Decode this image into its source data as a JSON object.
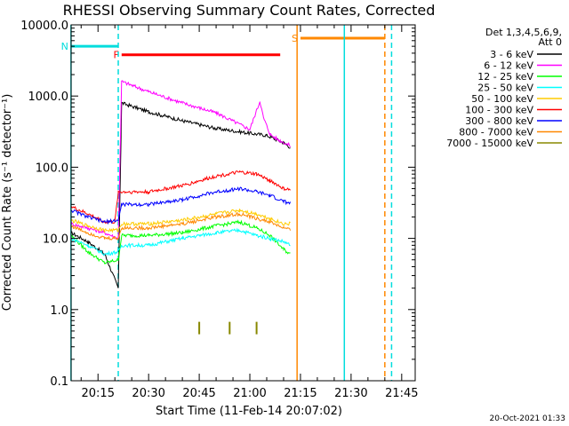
{
  "chart_data": {
    "type": "line",
    "title": "RHESSI Observing Summary Count Rates, Corrected",
    "xlabel": "Start Time (11-Feb-14 20:07:02)",
    "ylabel": "Corrected Count Rate (s⁻¹ detector⁻¹)",
    "y_scale": "log",
    "ylim": [
      0.1,
      10000
    ],
    "xlim": [
      "20:07:02",
      "21:49:00"
    ],
    "x_ticks": [
      "20:15",
      "20:30",
      "20:45",
      "21:00",
      "21:15",
      "21:30",
      "21:45"
    ],
    "y_ticks": [
      "0.1",
      "1.0",
      "10.0",
      "100.0",
      "1000.0",
      "10000.0"
    ],
    "grid": false,
    "legend_position": "top-right",
    "legend_header": [
      "Det 1,3,4,5,6,9,",
      "Att 0"
    ],
    "series": [
      {
        "name": "3 - 6 keV",
        "color": "#000000",
        "x": [
          "20:07",
          "20:12",
          "20:17",
          "20:21",
          "20:22",
          "20:30",
          "20:40",
          "20:50",
          "21:00",
          "21:05",
          "21:10",
          "21:12"
        ],
        "values": [
          12,
          9,
          6,
          2,
          800,
          600,
          450,
          350,
          300,
          280,
          220,
          190
        ]
      },
      {
        "name": "6 - 12 keV",
        "color": "#ff00ff",
        "x": [
          "20:07",
          "20:12",
          "20:17",
          "20:21",
          "20:22",
          "20:30",
          "20:40",
          "20:50",
          "21:00",
          "21:03",
          "21:04",
          "21:06",
          "21:08",
          "21:12"
        ],
        "values": [
          16,
          14,
          12,
          10,
          1600,
          1150,
          800,
          580,
          340,
          850,
          500,
          290,
          250,
          200
        ]
      },
      {
        "name": "12 - 25 keV",
        "color": "#00ff00",
        "x": [
          "20:07",
          "20:12",
          "20:17",
          "20:21",
          "20:22",
          "20:30",
          "20:40",
          "20:50",
          "20:57",
          "21:02",
          "21:06",
          "21:10",
          "21:12"
        ],
        "values": [
          11,
          6.5,
          4.5,
          5,
          11,
          11,
          12,
          15,
          17,
          14,
          11,
          7,
          6
        ]
      },
      {
        "name": "25 - 50 keV",
        "color": "#00ffff",
        "x": [
          "20:07",
          "20:12",
          "20:17",
          "20:21",
          "20:22",
          "20:30",
          "20:40",
          "20:50",
          "20:57",
          "21:02",
          "21:06",
          "21:10",
          "21:12"
        ],
        "values": [
          10,
          8,
          6,
          6.5,
          8,
          8,
          10,
          12,
          13,
          11,
          10,
          9,
          8
        ]
      },
      {
        "name": "50 - 100 keV",
        "color": "#ffcc00",
        "x": [
          "20:07",
          "20:12",
          "20:17",
          "20:21",
          "20:22",
          "20:30",
          "20:40",
          "20:50",
          "20:57",
          "21:02",
          "21:06",
          "21:10",
          "21:12"
        ],
        "values": [
          18,
          15,
          13,
          13,
          16,
          16,
          18,
          22,
          25,
          22,
          19,
          16,
          16
        ]
      },
      {
        "name": "100 - 300 keV",
        "color": "#ff0000",
        "x": [
          "20:07",
          "20:12",
          "20:17",
          "20:20",
          "20:21",
          "20:30",
          "20:40",
          "20:50",
          "20:57",
          "21:02",
          "21:06",
          "21:10",
          "21:12"
        ],
        "values": [
          28,
          22,
          17,
          17,
          45,
          45,
          55,
          75,
          85,
          80,
          65,
          50,
          48
        ]
      },
      {
        "name": "300 - 800 keV",
        "color": "#0000ff",
        "x": [
          "20:07",
          "20:12",
          "20:17",
          "20:21",
          "20:22",
          "20:30",
          "20:40",
          "20:50",
          "20:57",
          "21:02",
          "21:06",
          "21:10",
          "21:12"
        ],
        "values": [
          25,
          20,
          17,
          18,
          30,
          30,
          35,
          45,
          50,
          45,
          40,
          33,
          31
        ]
      },
      {
        "name": "800 - 7000 keV",
        "color": "#ff8800",
        "x": [
          "20:07",
          "20:12",
          "20:17",
          "20:21",
          "20:22",
          "20:30",
          "20:40",
          "20:50",
          "20:57",
          "21:02",
          "21:06",
          "21:10",
          "21:12"
        ],
        "values": [
          15,
          12,
          10,
          10,
          14,
          14,
          16,
          20,
          22,
          19,
          17,
          14,
          13
        ]
      },
      {
        "name": "7000 - 15000 keV",
        "color": "#888800",
        "x": [
          "20:45",
          "20:54",
          "21:02"
        ],
        "values": [
          0.55,
          0.55,
          0.55
        ]
      }
    ],
    "annotations": [
      {
        "text": "N",
        "color": "#00dddd",
        "time_range": [
          "20:07",
          "20:21"
        ],
        "level": 5000
      },
      {
        "text": "F",
        "color": "#ff0000",
        "time_range": [
          "20:22",
          "21:09"
        ],
        "level": 3800
      },
      {
        "text": "S",
        "color": "#ff8800",
        "time_range": [
          "21:15",
          "21:40"
        ],
        "level": 6500
      }
    ],
    "vertical_lines": [
      {
        "time": "20:07",
        "color": "#00dddd",
        "style": "solid"
      },
      {
        "time": "20:21",
        "color": "#00dddd",
        "style": "dashed"
      },
      {
        "time": "21:14",
        "color": "#ff8800",
        "style": "solid"
      },
      {
        "time": "21:28",
        "color": "#00dddd",
        "style": "solid"
      },
      {
        "time": "21:40",
        "color": "#ff8800",
        "style": "dashed"
      },
      {
        "time": "21:42",
        "color": "#00dddd",
        "style": "dashed"
      }
    ]
  },
  "footer_timestamp": "20-Oct-2021 01:33"
}
